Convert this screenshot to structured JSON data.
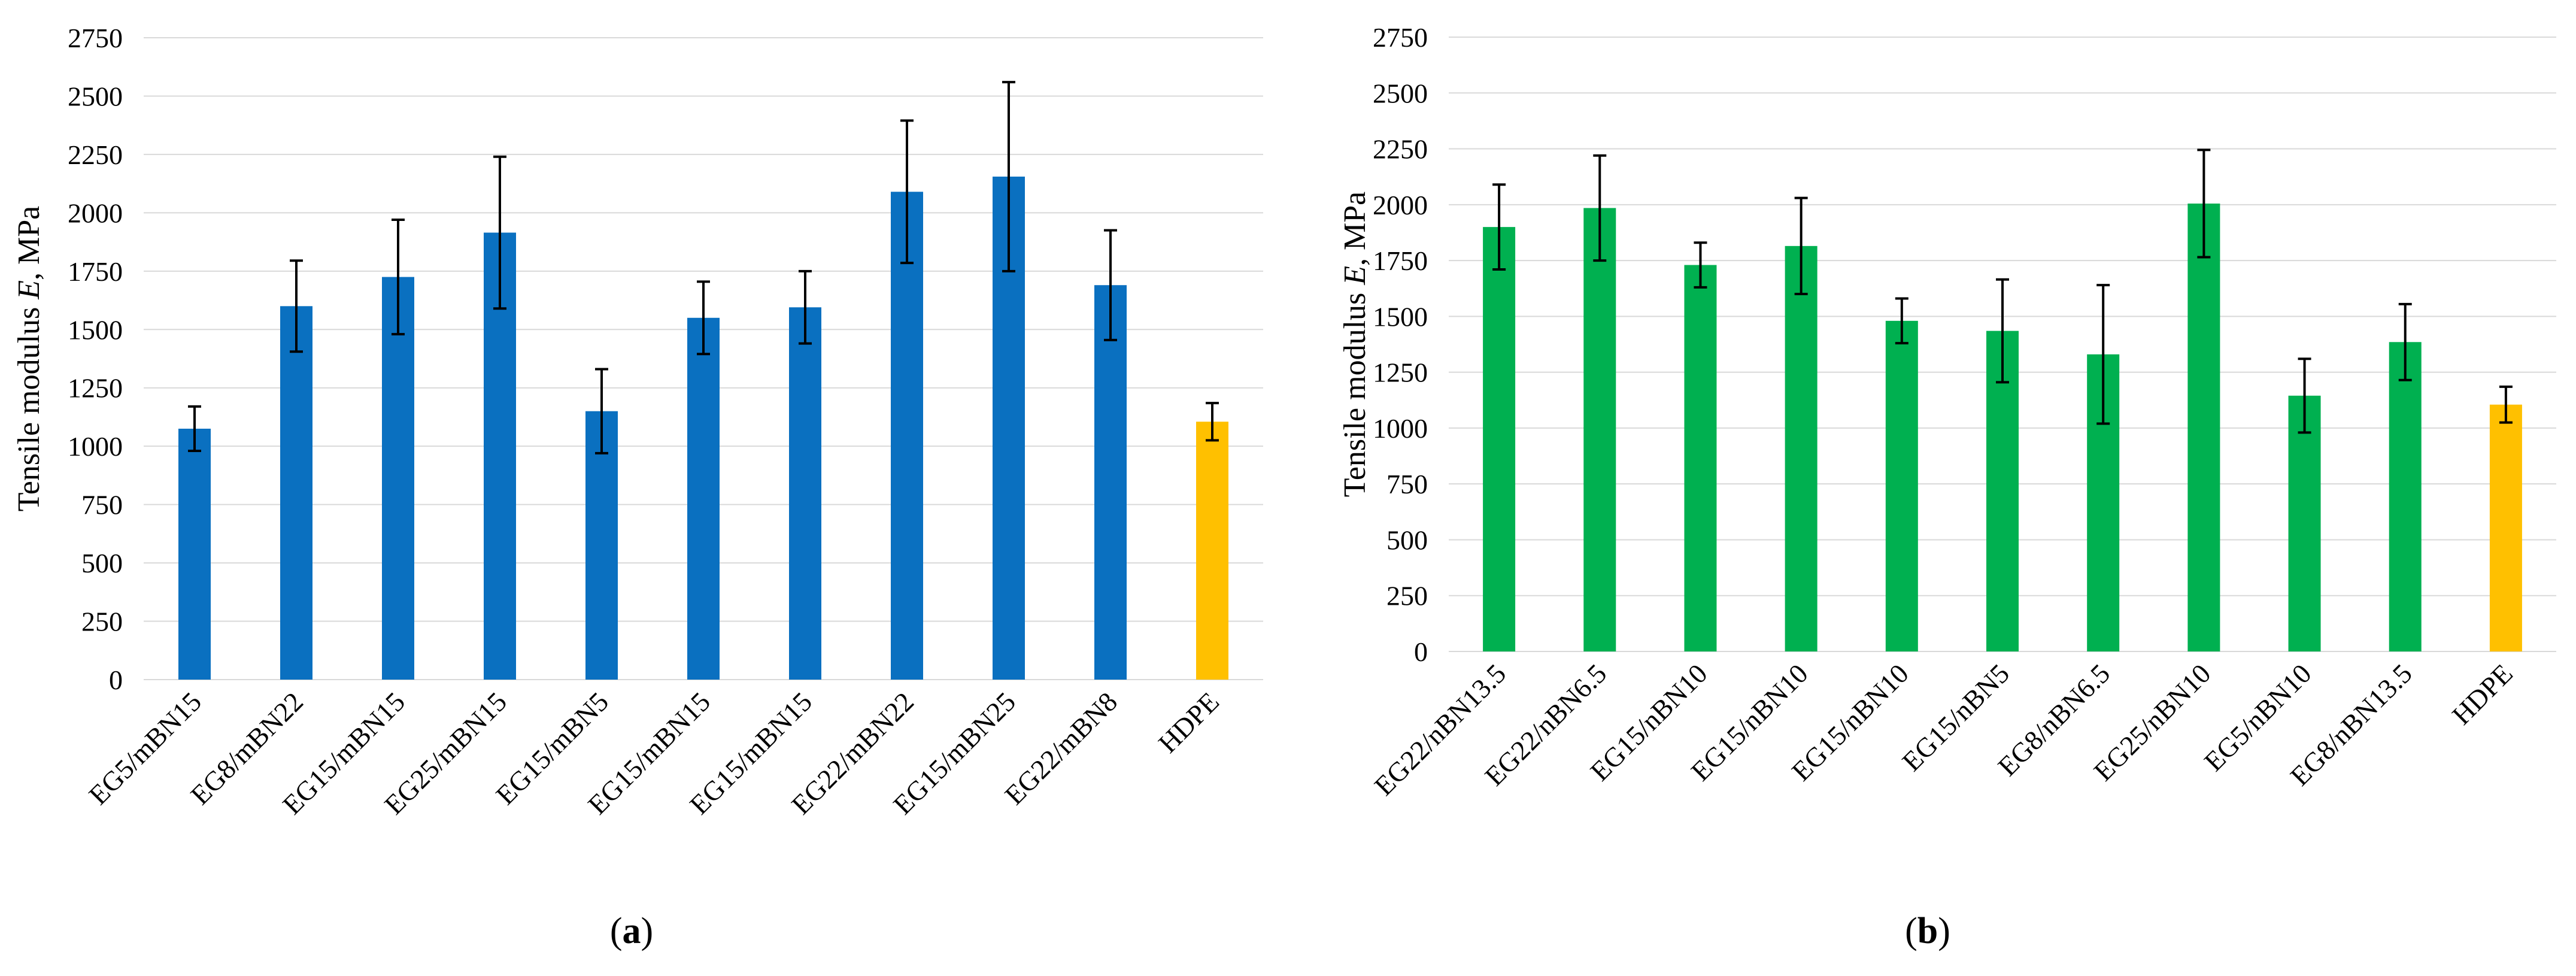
{
  "chart_data": [
    {
      "type": "bar",
      "panel_label": "(a)",
      "panel_letter": "a",
      "ylabel_prefix": "Tensile modulus ",
      "ylabel_italic": "E",
      "ylabel_suffix": ", MPa",
      "ylim": [
        0,
        2750
      ],
      "yticks": [
        0,
        250,
        500,
        750,
        1000,
        1250,
        1500,
        1750,
        2000,
        2250,
        2500,
        2750
      ],
      "grid": true,
      "categories": [
        "EG5/mBN15",
        "EG8/mBN22",
        "EG15/mBN15",
        "EG25/mBN15",
        "EG15/mBN5",
        "EG15/mBN15",
        "EG15/mBN15",
        "EG22/mBN22",
        "EG15/mBN25",
        "EG22/mBN8",
        "HDPE"
      ],
      "values": [
        1075,
        1600,
        1725,
        1915,
        1150,
        1550,
        1595,
        2090,
        2155,
        1690,
        1105
      ],
      "errors": [
        95,
        195,
        245,
        325,
        180,
        155,
        155,
        305,
        405,
        235,
        80
      ],
      "colors": [
        "#0a70c0",
        "#0a70c0",
        "#0a70c0",
        "#0a70c0",
        "#0a70c0",
        "#0a70c0",
        "#0a70c0",
        "#0a70c0",
        "#0a70c0",
        "#0a70c0",
        "#ffc000"
      ]
    },
    {
      "type": "bar",
      "panel_label": "(b)",
      "panel_letter": "b",
      "ylabel_prefix": "Tensile modulus ",
      "ylabel_italic": "E",
      "ylabel_suffix": ", MPa",
      "ylim": [
        0,
        2750
      ],
      "yticks": [
        0,
        250,
        500,
        750,
        1000,
        1250,
        1500,
        1750,
        2000,
        2250,
        2500,
        2750
      ],
      "grid": true,
      "categories": [
        "EG22/nBN13.5",
        "EG22/nBN6.5",
        "EG15/nBN10",
        "EG15/nBN10",
        "EG15/nBN10",
        "EG15/nBN5",
        "EG8/nBN6.5",
        "EG25/nBN10",
        "EG5/nBN10",
        "EG8/nBN13.5",
        "HDPE"
      ],
      "values": [
        1900,
        1985,
        1730,
        1815,
        1480,
        1435,
        1330,
        2005,
        1145,
        1385,
        1105
      ],
      "errors": [
        190,
        235,
        100,
        215,
        100,
        230,
        310,
        240,
        165,
        170,
        80
      ],
      "colors": [
        "#00b050",
        "#00b050",
        "#00b050",
        "#00b050",
        "#00b050",
        "#00b050",
        "#00b050",
        "#00b050",
        "#00b050",
        "#00b050",
        "#ffc000"
      ]
    }
  ]
}
